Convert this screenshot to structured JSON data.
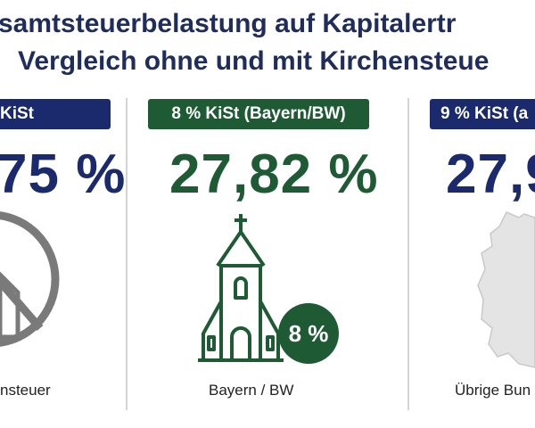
{
  "title": {
    "line1": "samtsteuerbelastung auf Kapitalertr",
    "line2": "Vergleich ohne und mit Kirchensteue"
  },
  "columns": [
    {
      "badge": "KiSt",
      "rate": "75 %",
      "caption": "nsteuer",
      "icon": "crossed-church-icon",
      "color": "#1a2a6c"
    },
    {
      "badge": "8 % KiSt (Bayern/BW)",
      "rate": "27,82 %",
      "caption": "Bayern / BW",
      "icon": "church-icon",
      "circle_label": "8 %",
      "color": "#1e5b34"
    },
    {
      "badge": "9 % KiSt (a",
      "rate": "27,9",
      "caption": "Übrige Bun",
      "icon": "germany-map-icon",
      "color": "#1a2a6c"
    }
  ]
}
